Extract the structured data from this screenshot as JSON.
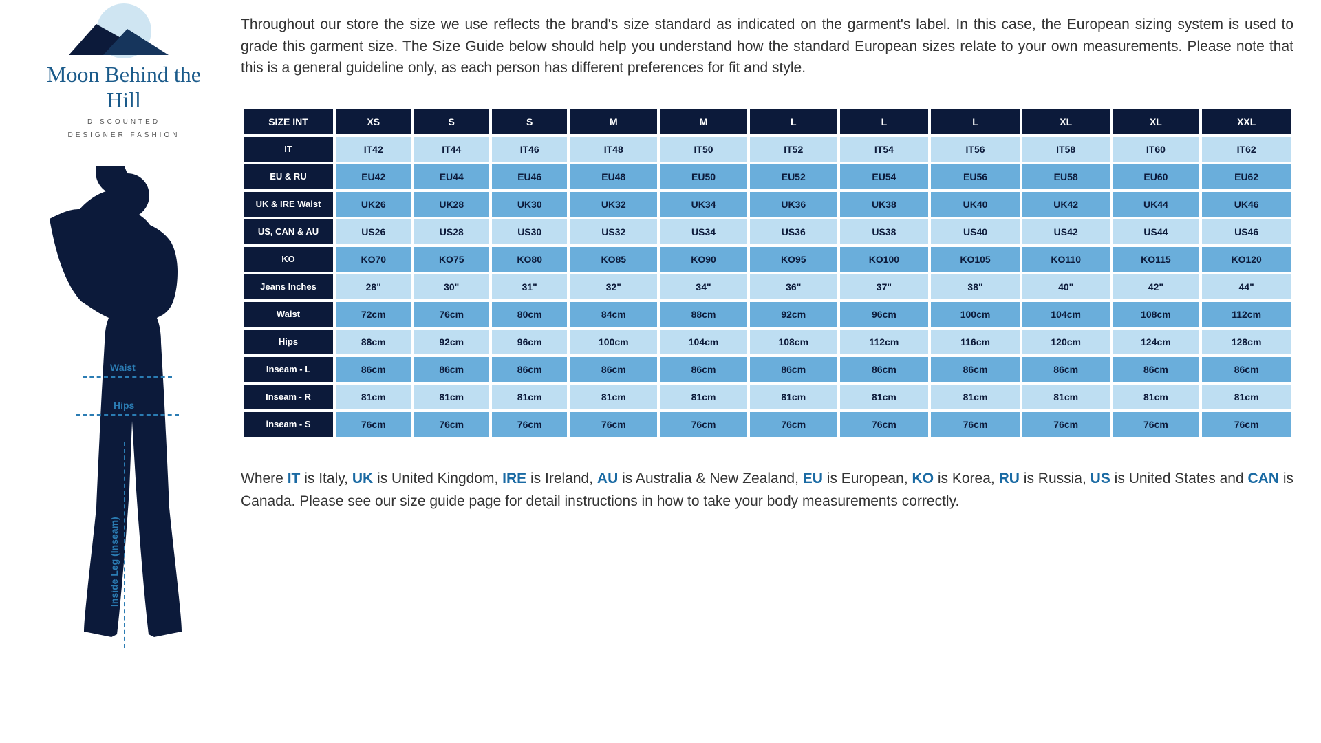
{
  "brand": {
    "name": "Moon Behind the Hill",
    "sub1": "DISCOUNTED",
    "sub2": "DESIGNER FASHION"
  },
  "intro": "Throughout our store the size we use reflects the brand's size standard as indicated on the garment's label. In this case, the European sizing system is used to grade this garment size. The Size Guide below should help you understand how the standard European sizes relate to your own measurements. Please note that this is a general guideline only, as each person has different preferences for fit and style.",
  "silhouette_labels": {
    "waist": "Waist",
    "hips": "Hips",
    "inseam": "Inside Leg (Inseam)"
  },
  "table": {
    "header_label": "SIZE INT",
    "header_cells": [
      "XS",
      "S",
      "S",
      "M",
      "M",
      "L",
      "L",
      "L",
      "XL",
      "XL",
      "XXL"
    ],
    "rows": [
      {
        "label": "IT",
        "shade": "light",
        "cells": [
          "IT42",
          "IT44",
          "IT46",
          "IT48",
          "IT50",
          "IT52",
          "IT54",
          "IT56",
          "IT58",
          "IT60",
          "IT62"
        ]
      },
      {
        "label": "EU & RU",
        "shade": "mid",
        "cells": [
          "EU42",
          "EU44",
          "EU46",
          "EU48",
          "EU50",
          "EU52",
          "EU54",
          "EU56",
          "EU58",
          "EU60",
          "EU62"
        ]
      },
      {
        "label": "UK & IRE Waist",
        "shade": "mid",
        "cells": [
          "UK26",
          "UK28",
          "UK30",
          "UK32",
          "UK34",
          "UK36",
          "UK38",
          "UK40",
          "UK42",
          "UK44",
          "UK46"
        ]
      },
      {
        "label": "US, CAN & AU",
        "shade": "light",
        "cells": [
          "US26",
          "US28",
          "US30",
          "US32",
          "US34",
          "US36",
          "US38",
          "US40",
          "US42",
          "US44",
          "US46"
        ]
      },
      {
        "label": "KO",
        "shade": "mid",
        "cells": [
          "KO70",
          "KO75",
          "KO80",
          "KO85",
          "KO90",
          "KO95",
          "KO100",
          "KO105",
          "KO110",
          "KO115",
          "KO120"
        ]
      },
      {
        "label": "Jeans Inches",
        "shade": "light",
        "cells": [
          "28\"",
          "30\"",
          "31\"",
          "32\"",
          "34\"",
          "36\"",
          "37\"",
          "38\"",
          "40\"",
          "42\"",
          "44\""
        ]
      },
      {
        "label": "Waist",
        "shade": "mid",
        "cells": [
          "72cm",
          "76cm",
          "80cm",
          "84cm",
          "88cm",
          "92cm",
          "96cm",
          "100cm",
          "104cm",
          "108cm",
          "112cm"
        ]
      },
      {
        "label": "Hips",
        "shade": "light",
        "cells": [
          "88cm",
          "92cm",
          "96cm",
          "100cm",
          "104cm",
          "108cm",
          "112cm",
          "116cm",
          "120cm",
          "124cm",
          "128cm"
        ]
      },
      {
        "label": "Inseam - L",
        "shade": "mid",
        "cells": [
          "86cm",
          "86cm",
          "86cm",
          "86cm",
          "86cm",
          "86cm",
          "86cm",
          "86cm",
          "86cm",
          "86cm",
          "86cm"
        ]
      },
      {
        "label": "Inseam - R",
        "shade": "light",
        "cells": [
          "81cm",
          "81cm",
          "81cm",
          "81cm",
          "81cm",
          "81cm",
          "81cm",
          "81cm",
          "81cm",
          "81cm",
          "81cm"
        ]
      },
      {
        "label": "inseam - S",
        "shade": "mid",
        "cells": [
          "76cm",
          "76cm",
          "76cm",
          "76cm",
          "76cm",
          "76cm",
          "76cm",
          "76cm",
          "76cm",
          "76cm",
          "76cm"
        ]
      }
    ]
  },
  "footer": {
    "pre": "Where ",
    "parts": [
      {
        "hl": "IT",
        "plain": " is Italy, "
      },
      {
        "hl": "UK",
        "plain": " is United Kingdom, "
      },
      {
        "hl": "IRE",
        "plain": " is Ireland, "
      },
      {
        "hl": "AU",
        "plain": " is Australia & New Zealand, "
      },
      {
        "hl": "EU",
        "plain": " is European, "
      },
      {
        "hl": "KO",
        "plain": " is Korea, "
      },
      {
        "hl": "RU",
        "plain": " is Russia,  "
      },
      {
        "hl": "US",
        "plain": " is United States and "
      },
      {
        "hl": "CAN",
        "plain": " is Canada. Please see our size guide page for detail instructions in how to take your body measurements correctly."
      }
    ]
  }
}
